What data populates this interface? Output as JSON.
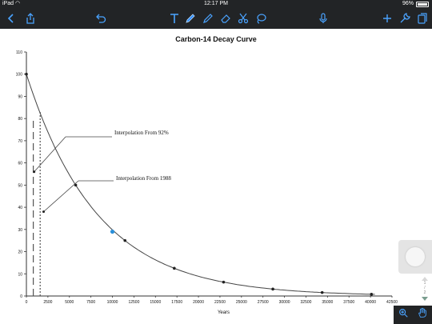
{
  "status_bar": {
    "device": "iPad",
    "time": "12:17 PM",
    "battery": "96%",
    "battery_level": 0.96
  },
  "toolbar": {
    "icons": [
      "back-chevron-icon",
      "share-icon",
      "undo-icon",
      "text-tool-icon",
      "pen-tool-icon",
      "highlighter-icon",
      "eraser-icon",
      "scissors-icon",
      "lasso-icon",
      "microphone-icon",
      "add-icon",
      "wrench-icon",
      "pages-icon"
    ],
    "pen_color": "#2f8cff"
  },
  "page_nav": {
    "current": "1",
    "separator": "/",
    "total": "2"
  },
  "chart_data": {
    "type": "line",
    "title": "Carbon-14 Decay Curve",
    "xlabel": "Years",
    "ylabel": "",
    "xlim": [
      0,
      42500
    ],
    "ylim": [
      0,
      110
    ],
    "x_ticks": [
      0,
      2500,
      5000,
      7500,
      10000,
      12500,
      15000,
      17500,
      20000,
      22500,
      25000,
      27500,
      30000,
      32500,
      35000,
      37500,
      40000,
      42500
    ],
    "x_tick_labels": [
      "0",
      "2500",
      "5000",
      "7500",
      "10000",
      "12500",
      "15000",
      "17500",
      "20000",
      "22500",
      "25000",
      "27500",
      "30000",
      "32500",
      "35000",
      "37500",
      "40000",
      "42500"
    ],
    "y_ticks": [
      0,
      10,
      20,
      30,
      40,
      50,
      60,
      70,
      80,
      90,
      100,
      110
    ],
    "y_tick_labels": [
      "0",
      "10",
      "20",
      "30",
      "40",
      "50",
      "60",
      "70",
      "80",
      "90",
      "100",
      "110"
    ],
    "half_life": 5730,
    "series": [
      {
        "values_x": [
          0,
          5730,
          11460,
          17190,
          22920,
          28650,
          34380,
          40110
        ],
        "values_y": [
          100,
          50,
          25,
          12.5,
          6.25,
          3.13,
          1.56,
          0.78
        ]
      }
    ],
    "highlight_point": {
      "x": 10000,
      "y": 29,
      "color": "#2a8fd9"
    },
    "annotations": [
      {
        "text": "Interpolation From 92%",
        "target_x": 900,
        "target_y": 56
      },
      {
        "text": "Interpolation From 1988",
        "target_x": 2000,
        "target_y": 38
      }
    ],
    "reference_lines": [
      {
        "style": "dashed",
        "x": 800,
        "y_top": 80
      },
      {
        "style": "dotted",
        "x": 1600,
        "y_top": 83
      }
    ],
    "grid": false,
    "legend": "none",
    "colors": {
      "curve": "#444444",
      "axis": "#333333",
      "text": "#111111"
    }
  }
}
